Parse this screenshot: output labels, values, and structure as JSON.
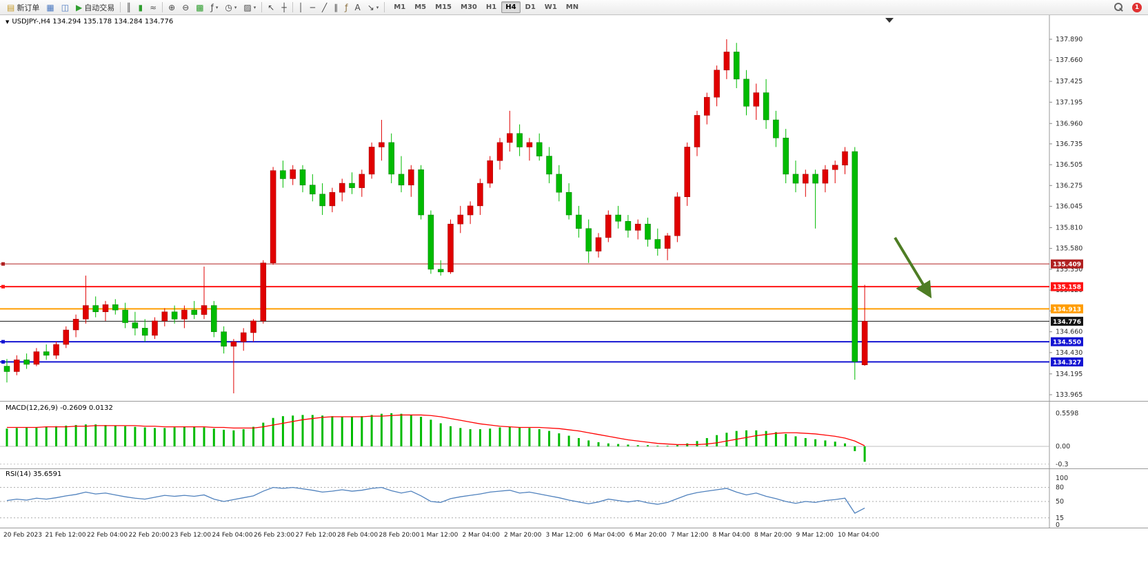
{
  "toolbar": {
    "new_order_label": "新订单",
    "auto_trading_label": "自动交易",
    "notification_count": "1",
    "active_timeframe": "H4",
    "timeframes": [
      "M1",
      "M5",
      "M15",
      "M30",
      "H1",
      "H4",
      "D1",
      "W1",
      "MN"
    ],
    "buttons": [
      {
        "name": "new-order-button",
        "glyph": "▤",
        "glyph_color": "#c59a2a",
        "label": "新订单"
      },
      {
        "name": "market-watch-button",
        "glyph": "▦",
        "glyph_color": "#4a78c0"
      },
      {
        "name": "data-window-button",
        "glyph": "◫",
        "glyph_color": "#4a78c0"
      },
      {
        "name": "auto-trading-button",
        "glyph": "▶",
        "glyph_color": "#2f9e2f",
        "label": "自动交易"
      },
      {
        "sep": true
      },
      {
        "name": "bar-chart-button",
        "glyph": "║",
        "glyph_color": "#555"
      },
      {
        "name": "candlestick-chart-button",
        "glyph": "▮",
        "glyph_color": "#2f9e2f"
      },
      {
        "name": "line-chart-button",
        "glyph": "≈",
        "glyph_color": "#555"
      },
      {
        "sep": true
      },
      {
        "name": "zoom-in-button",
        "glyph": "⊕",
        "glyph_color": "#444"
      },
      {
        "name": "zoom-out-button",
        "glyph": "⊖",
        "glyph_color": "#444"
      },
      {
        "name": "tile-windows-button",
        "glyph": "▩",
        "glyph_color": "#2f9e2f"
      },
      {
        "name": "indicators-button",
        "glyph": "ƒ",
        "glyph_color": "#444",
        "dropdown": true
      },
      {
        "name": "periods-button",
        "glyph": "◷",
        "glyph_color": "#444",
        "dropdown": true
      },
      {
        "name": "templates-button",
        "glyph": "▨",
        "glyph_color": "#444",
        "dropdown": true
      },
      {
        "sep": true
      },
      {
        "name": "cursor-button",
        "glyph": "↖",
        "glyph_color": "#444"
      },
      {
        "name": "crosshair-button",
        "glyph": "┼",
        "glyph_color": "#444"
      },
      {
        "sep": true
      },
      {
        "name": "vertical-line-button",
        "glyph": "│",
        "glyph_color": "#444"
      },
      {
        "name": "horizontal-line-button",
        "glyph": "─",
        "glyph_color": "#444"
      },
      {
        "name": "trendline-button",
        "glyph": "╱",
        "glyph_color": "#444"
      },
      {
        "name": "channel-button",
        "glyph": "∥",
        "glyph_color": "#444"
      },
      {
        "name": "fibonacci-button",
        "glyph": "ƒ",
        "glyph_color": "#8a6d3b"
      },
      {
        "name": "text-button",
        "glyph": "A",
        "glyph_color": "#444"
      },
      {
        "name": "arrows-button",
        "glyph": "↘",
        "glyph_color": "#444",
        "dropdown": true
      },
      {
        "sep": true
      }
    ]
  },
  "chart_data": {
    "type": "candlestick",
    "symbol": "USDJPY-",
    "timeframe": "H4",
    "title_text": "USDJPY-,H4  134.294 135.178 134.284 134.776",
    "current_ohlc": {
      "open": "134.294",
      "high": "135.178",
      "low": "134.284",
      "close": "134.776"
    },
    "price_axis_ticks": [
      "137.890",
      "137.660",
      "137.425",
      "137.195",
      "136.960",
      "136.735",
      "136.505",
      "136.275",
      "136.045",
      "135.810",
      "135.580",
      "135.350",
      "135.120",
      "134.890",
      "134.660",
      "134.430",
      "134.195",
      "133.965"
    ],
    "levels": [
      {
        "price": 135.409,
        "label": "135.409",
        "color": "#b02020",
        "width": 1,
        "handle": true,
        "role": "resistance-line"
      },
      {
        "price": 135.158,
        "label": "135.158",
        "color": "#ff1414",
        "width": 2,
        "handle": true,
        "role": "resistance-line"
      },
      {
        "price": 134.913,
        "label": "134.913",
        "color": "#ff9d00",
        "width": 2,
        "handle": false,
        "role": "pivot-line"
      },
      {
        "price": 134.776,
        "label": "134.776",
        "color": "#141414",
        "width": 1,
        "handle": false,
        "role": "current-price-line"
      },
      {
        "price": 134.55,
        "label": "134.550",
        "color": "#1414d2",
        "width": 2,
        "handle": true,
        "role": "support-line"
      },
      {
        "price": 134.327,
        "label": "134.327",
        "color": "#1414d2",
        "width": 2,
        "handle": true,
        "role": "support-line"
      }
    ],
    "candles": [
      [
        134.28,
        134.36,
        134.1,
        134.22
      ],
      [
        134.22,
        134.4,
        134.18,
        134.35
      ],
      [
        134.35,
        134.42,
        134.25,
        134.3
      ],
      [
        134.3,
        134.48,
        134.28,
        134.44
      ],
      [
        134.44,
        134.52,
        134.35,
        134.4
      ],
      [
        134.4,
        134.55,
        134.36,
        134.52
      ],
      [
        134.52,
        134.72,
        134.48,
        134.68
      ],
      [
        134.68,
        134.85,
        134.6,
        134.8
      ],
      [
        134.8,
        135.28,
        134.75,
        134.95
      ],
      [
        134.95,
        135.05,
        134.82,
        134.88
      ],
      [
        134.88,
        135.0,
        134.78,
        134.96
      ],
      [
        134.96,
        135.02,
        134.85,
        134.9
      ],
      [
        134.9,
        134.98,
        134.7,
        134.76
      ],
      [
        134.76,
        134.88,
        134.62,
        134.7
      ],
      [
        134.7,
        134.8,
        134.55,
        134.62
      ],
      [
        134.62,
        134.82,
        134.58,
        134.78
      ],
      [
        134.78,
        134.92,
        134.72,
        134.88
      ],
      [
        134.88,
        134.95,
        134.75,
        134.8
      ],
      [
        134.8,
        134.95,
        134.7,
        134.9
      ],
      [
        134.9,
        135.0,
        134.8,
        134.85
      ],
      [
        134.85,
        135.38,
        134.8,
        134.95
      ],
      [
        134.95,
        135.0,
        134.6,
        134.66
      ],
      [
        134.66,
        134.72,
        134.42,
        134.5
      ],
      [
        134.5,
        134.58,
        133.98,
        134.55
      ],
      [
        134.55,
        134.7,
        134.45,
        134.65
      ],
      [
        134.65,
        134.8,
        134.55,
        134.78
      ],
      [
        134.78,
        135.45,
        134.75,
        135.42
      ],
      [
        135.42,
        136.48,
        135.4,
        136.44
      ],
      [
        136.44,
        136.55,
        136.25,
        136.35
      ],
      [
        136.35,
        136.5,
        136.28,
        136.45
      ],
      [
        136.45,
        136.5,
        136.2,
        136.28
      ],
      [
        136.28,
        136.4,
        136.1,
        136.18
      ],
      [
        136.18,
        136.3,
        135.95,
        136.05
      ],
      [
        136.05,
        136.25,
        135.98,
        136.2
      ],
      [
        136.2,
        136.35,
        136.1,
        136.3
      ],
      [
        136.3,
        136.42,
        136.18,
        136.25
      ],
      [
        136.25,
        136.45,
        136.15,
        136.4
      ],
      [
        136.4,
        136.75,
        136.35,
        136.7
      ],
      [
        136.7,
        137.0,
        136.55,
        136.75
      ],
      [
        136.75,
        136.85,
        136.3,
        136.4
      ],
      [
        136.4,
        136.6,
        136.2,
        136.28
      ],
      [
        136.28,
        136.5,
        136.15,
        136.45
      ],
      [
        136.45,
        136.5,
        135.9,
        135.95
      ],
      [
        135.95,
        136.0,
        135.3,
        135.35
      ],
      [
        135.35,
        135.45,
        135.28,
        135.32
      ],
      [
        135.32,
        135.9,
        135.3,
        135.85
      ],
      [
        135.85,
        136.05,
        135.75,
        135.95
      ],
      [
        135.95,
        136.1,
        135.85,
        136.05
      ],
      [
        136.05,
        136.35,
        135.95,
        136.3
      ],
      [
        136.3,
        136.6,
        136.25,
        136.55
      ],
      [
        136.55,
        136.8,
        136.45,
        136.75
      ],
      [
        136.75,
        137.1,
        136.65,
        136.85
      ],
      [
        136.85,
        136.95,
        136.6,
        136.7
      ],
      [
        136.7,
        136.8,
        136.55,
        136.75
      ],
      [
        136.75,
        136.85,
        136.55,
        136.6
      ],
      [
        136.6,
        136.7,
        136.3,
        136.4
      ],
      [
        136.4,
        136.5,
        136.1,
        136.2
      ],
      [
        136.2,
        136.3,
        135.9,
        135.95
      ],
      [
        135.95,
        136.05,
        135.7,
        135.8
      ],
      [
        135.8,
        135.9,
        135.42,
        135.55
      ],
      [
        135.55,
        135.75,
        135.48,
        135.7
      ],
      [
        135.7,
        136.0,
        135.65,
        135.95
      ],
      [
        135.95,
        136.05,
        135.8,
        135.88
      ],
      [
        135.88,
        135.95,
        135.7,
        135.78
      ],
      [
        135.78,
        135.9,
        135.68,
        135.85
      ],
      [
        135.85,
        135.92,
        135.6,
        135.68
      ],
      [
        135.68,
        135.8,
        135.5,
        135.58
      ],
      [
        135.58,
        135.75,
        135.45,
        135.72
      ],
      [
        135.72,
        136.2,
        135.65,
        136.15
      ],
      [
        136.15,
        136.75,
        136.05,
        136.7
      ],
      [
        136.7,
        137.1,
        136.6,
        137.05
      ],
      [
        137.05,
        137.3,
        136.95,
        137.25
      ],
      [
        137.25,
        137.6,
        137.15,
        137.55
      ],
      [
        137.55,
        137.89,
        137.45,
        137.75
      ],
      [
        137.75,
        137.85,
        137.35,
        137.45
      ],
      [
        137.45,
        137.55,
        137.05,
        137.15
      ],
      [
        137.15,
        137.4,
        137.0,
        137.3
      ],
      [
        137.3,
        137.45,
        136.9,
        137.0
      ],
      [
        137.0,
        137.1,
        136.7,
        136.8
      ],
      [
        136.8,
        136.9,
        136.3,
        136.4
      ],
      [
        136.4,
        136.55,
        136.2,
        136.3
      ],
      [
        136.3,
        136.45,
        136.15,
        136.4
      ],
      [
        136.4,
        136.45,
        135.8,
        136.3
      ],
      [
        136.3,
        136.5,
        136.2,
        136.45
      ],
      [
        136.45,
        136.55,
        136.3,
        136.5
      ],
      [
        136.5,
        136.7,
        136.4,
        136.65
      ],
      [
        136.65,
        136.7,
        134.13,
        134.33
      ],
      [
        134.294,
        135.178,
        134.284,
        134.776
      ]
    ],
    "macd": {
      "label_text": "MACD(12,26,9) -0.2609 0.0132",
      "main_value": "-0.2609",
      "signal_value": "0.0132",
      "axis_ticks": [
        "0.5598",
        "0.00",
        "-0.3"
      ],
      "histogram": [
        0.3,
        0.31,
        0.32,
        0.32,
        0.33,
        0.34,
        0.35,
        0.36,
        0.37,
        0.37,
        0.36,
        0.35,
        0.34,
        0.33,
        0.32,
        0.31,
        0.31,
        0.32,
        0.33,
        0.33,
        0.32,
        0.3,
        0.28,
        0.27,
        0.29,
        0.33,
        0.4,
        0.48,
        0.51,
        0.52,
        0.53,
        0.53,
        0.52,
        0.51,
        0.5,
        0.5,
        0.51,
        0.53,
        0.55,
        0.56,
        0.55,
        0.53,
        0.5,
        0.45,
        0.39,
        0.34,
        0.31,
        0.29,
        0.29,
        0.3,
        0.32,
        0.33,
        0.32,
        0.31,
        0.29,
        0.26,
        0.22,
        0.18,
        0.14,
        0.1,
        0.07,
        0.05,
        0.04,
        0.03,
        0.02,
        0.02,
        0.01,
        0.01,
        0.02,
        0.05,
        0.09,
        0.14,
        0.19,
        0.23,
        0.26,
        0.27,
        0.27,
        0.26,
        0.24,
        0.21,
        0.17,
        0.14,
        0.12,
        0.1,
        0.08,
        0.05,
        -0.08,
        -0.26
      ],
      "signal": [
        0.32,
        0.32,
        0.32,
        0.32,
        0.33,
        0.33,
        0.33,
        0.34,
        0.34,
        0.35,
        0.35,
        0.35,
        0.35,
        0.35,
        0.34,
        0.34,
        0.33,
        0.33,
        0.33,
        0.33,
        0.33,
        0.32,
        0.32,
        0.31,
        0.31,
        0.31,
        0.33,
        0.36,
        0.39,
        0.42,
        0.45,
        0.47,
        0.49,
        0.5,
        0.5,
        0.5,
        0.5,
        0.51,
        0.51,
        0.52,
        0.53,
        0.53,
        0.53,
        0.52,
        0.5,
        0.47,
        0.44,
        0.41,
        0.38,
        0.36,
        0.34,
        0.33,
        0.32,
        0.32,
        0.32,
        0.31,
        0.3,
        0.28,
        0.26,
        0.23,
        0.2,
        0.17,
        0.14,
        0.11,
        0.09,
        0.07,
        0.05,
        0.04,
        0.03,
        0.03,
        0.03,
        0.04,
        0.06,
        0.09,
        0.12,
        0.15,
        0.18,
        0.2,
        0.22,
        0.23,
        0.23,
        0.22,
        0.21,
        0.19,
        0.17,
        0.14,
        0.09,
        0.01
      ]
    },
    "rsi": {
      "label_text": "RSI(14) 35.6591",
      "value": "35.6591",
      "axis_ticks": [
        "100",
        "80",
        "50",
        "15",
        "0"
      ],
      "dashed_levels": [
        80,
        50,
        15
      ],
      "values": [
        52,
        55,
        53,
        57,
        55,
        58,
        62,
        65,
        70,
        66,
        68,
        64,
        60,
        57,
        55,
        59,
        63,
        61,
        63,
        61,
        64,
        55,
        50,
        54,
        58,
        62,
        72,
        80,
        78,
        80,
        77,
        74,
        70,
        72,
        75,
        72,
        74,
        78,
        80,
        73,
        68,
        72,
        62,
        50,
        48,
        56,
        60,
        63,
        66,
        70,
        72,
        74,
        68,
        70,
        66,
        62,
        58,
        53,
        49,
        45,
        49,
        55,
        52,
        49,
        52,
        47,
        44,
        48,
        56,
        64,
        69,
        72,
        75,
        78,
        70,
        64,
        68,
        61,
        56,
        50,
        46,
        50,
        48,
        52,
        54,
        57,
        25,
        36
      ]
    },
    "time_axis": [
      "20 Feb 2023",
      "21 Feb 12:00",
      "22 Feb 04:00",
      "22 Feb 20:00",
      "23 Feb 12:00",
      "24 Feb 04:00",
      "26 Feb 23:00",
      "27 Feb 12:00",
      "28 Feb 04:00",
      "28 Feb 20:00",
      "1 Mar 12:00",
      "2 Mar 04:00",
      "2 Mar 20:00",
      "3 Mar 12:00",
      "6 Mar 04:00",
      "6 Mar 20:00",
      "7 Mar 12:00",
      "8 Mar 04:00",
      "8 Mar 20:00",
      "9 Mar 12:00",
      "10 Mar 04:00"
    ],
    "colors": {
      "up": "#e00000",
      "up_border": "#990000",
      "down": "#00bb00",
      "down_border": "#007700",
      "macd_hist": "#00bb00",
      "macd_signal": "#ff0000",
      "rsi_line": "#4f81bd",
      "arrow": "#4e7d24",
      "axis_text": "#2b2b2b"
    }
  }
}
